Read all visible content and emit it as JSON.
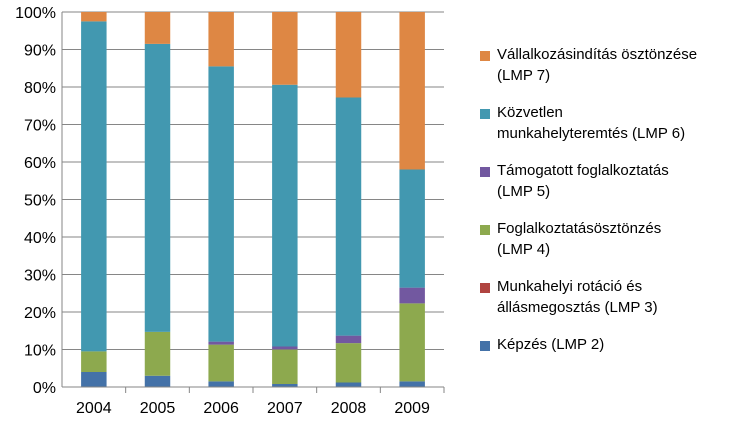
{
  "chart_data": {
    "type": "bar",
    "stacked": true,
    "categories": [
      "2004",
      "2005",
      "2006",
      "2007",
      "2008",
      "2009"
    ],
    "ylim": [
      0,
      100
    ],
    "yticks": [
      "0%",
      "10%",
      "20%",
      "30%",
      "40%",
      "50%",
      "60%",
      "70%",
      "80%",
      "90%",
      "100%"
    ],
    "grid": true,
    "legend_position": "right",
    "series": [
      {
        "name": "Képzés (LMP 2)",
        "label_lines": [
          "Képzés (LMP 2)"
        ],
        "color": "#4472A8",
        "values": [
          4,
          3,
          1.5,
          0.8,
          1.2,
          1.5
        ]
      },
      {
        "name": "Munkahelyi rotáció és állásmegosztás (LMP 3)",
        "label_lines": [
          "Munkahelyi rotáció és",
          "állásmegosztás (LMP 3)"
        ],
        "color": "#B04440",
        "values": [
          0,
          0,
          0,
          0,
          0,
          0
        ]
      },
      {
        "name": "Foglalkoztatásösztönzés (LMP 4)",
        "label_lines": [
          "Foglalkoztatásösztönzés",
          "(LMP 4)"
        ],
        "color": "#8DA94E",
        "values": [
          5.5,
          11.7,
          9.8,
          9.2,
          10.5,
          20.8
        ]
      },
      {
        "name": "Támogatott foglalkoztatás (LMP 5)",
        "label_lines": [
          "Támogatott foglalkoztatás",
          "(LMP 5)"
        ],
        "color": "#7258A0",
        "values": [
          0,
          0,
          0.8,
          0.8,
          2,
          4.2
        ]
      },
      {
        "name": "Közvetlen munkahelyteremtés (LMP 6)",
        "label_lines": [
          "Közvetlen",
          "munkahelyteremtés (LMP 6)"
        ],
        "color": "#4298B0",
        "values": [
          88,
          76.8,
          73.4,
          69.8,
          63.5,
          31.5
        ]
      },
      {
        "name": "Vállalkozásindítás ösztönzése (LMP 7)",
        "label_lines": [
          "Vállalkozásindítás ösztönzése",
          "(LMP 7)"
        ],
        "color": "#DE8744",
        "values": [
          2.5,
          8.5,
          14.5,
          19.4,
          22.8,
          42
        ]
      }
    ]
  }
}
